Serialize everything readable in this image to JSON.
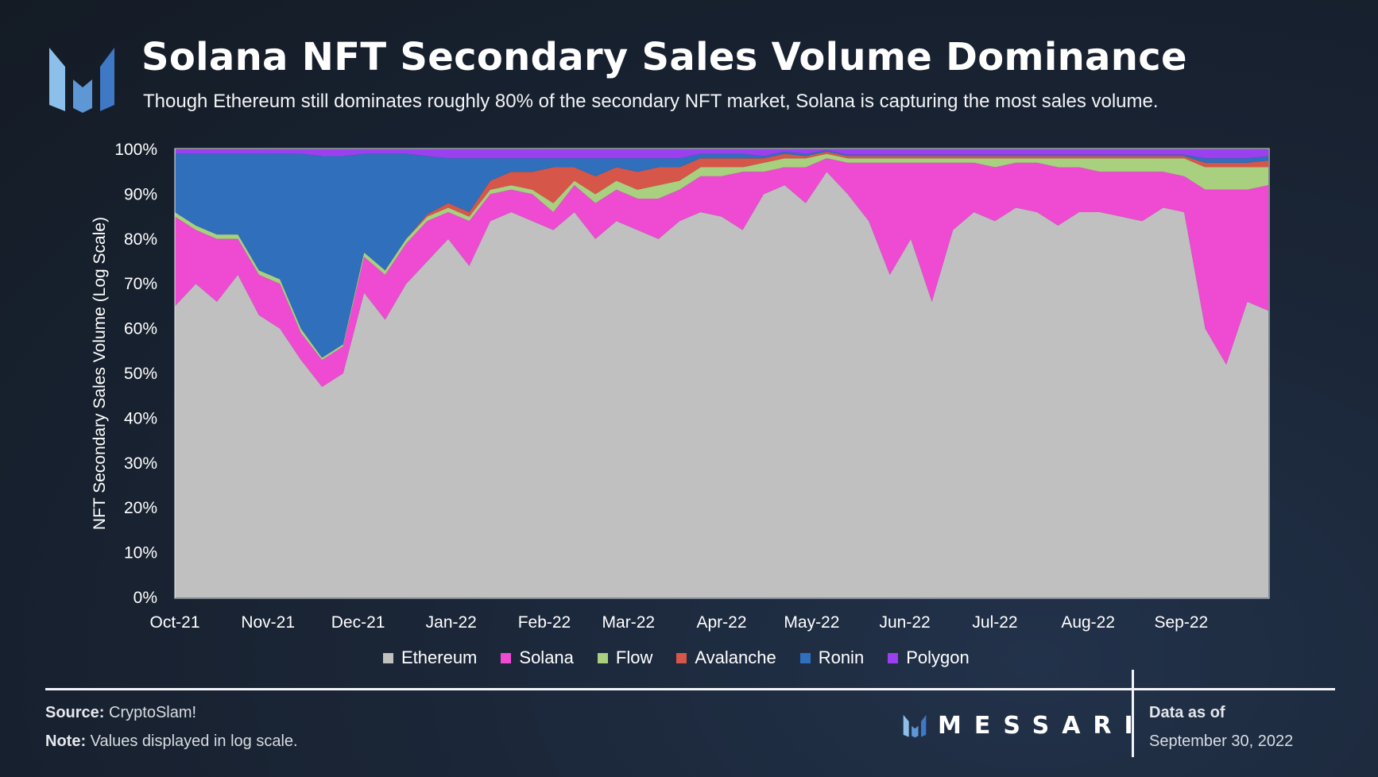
{
  "header": {
    "title": "Solana NFT Secondary Sales Volume Dominance",
    "subtitle": "Though Ethereum still dominates roughly 80% of the secondary NFT market, Solana is capturing the most sales volume."
  },
  "footer": {
    "source_label": "Source:",
    "source_value": "CryptoSlam!",
    "note_label": "Note:",
    "note_value": "Values displayed in log scale.",
    "brand": "MESSARI",
    "data_as_of_label": "Data as of",
    "data_as_of_date": "September 30, 2022"
  },
  "chart_data": {
    "type": "area",
    "stacked": true,
    "title": "Solana NFT Secondary Sales Volume Dominance",
    "xlabel": "",
    "ylabel": "NFT Secondary Sales Volume (Log Scale)",
    "ylim": [
      0,
      100
    ],
    "y_ticks": [
      "0%",
      "10%",
      "20%",
      "30%",
      "40%",
      "50%",
      "60%",
      "70%",
      "80%",
      "90%",
      "100%"
    ],
    "x_ticks": [
      "Oct-21",
      "Nov-21",
      "Dec-21",
      "Jan-22",
      "Feb-22",
      "Mar-22",
      "Apr-22",
      "May-22",
      "Jun-22",
      "Jul-22",
      "Aug-22",
      "Sep-22"
    ],
    "legend_position": "bottom",
    "colors": {
      "Ethereum": "#c0c0c0",
      "Solana": "#ee4bd2",
      "Flow": "#a9d07f",
      "Avalanche": "#d6574a",
      "Ronin": "#2f6fbb",
      "Polygon": "#9b40ee"
    },
    "x": [
      "2021-10-01",
      "2021-10-08",
      "2021-10-15",
      "2021-10-22",
      "2021-10-29",
      "2021-11-05",
      "2021-11-12",
      "2021-11-19",
      "2021-11-26",
      "2021-12-03",
      "2021-12-10",
      "2021-12-17",
      "2021-12-24",
      "2021-12-31",
      "2022-01-07",
      "2022-01-14",
      "2022-01-21",
      "2022-01-28",
      "2022-02-04",
      "2022-02-11",
      "2022-02-18",
      "2022-02-25",
      "2022-03-04",
      "2022-03-11",
      "2022-03-18",
      "2022-03-25",
      "2022-04-01",
      "2022-04-08",
      "2022-04-15",
      "2022-04-22",
      "2022-04-29",
      "2022-05-06",
      "2022-05-13",
      "2022-05-20",
      "2022-05-27",
      "2022-06-03",
      "2022-06-10",
      "2022-06-17",
      "2022-06-24",
      "2022-07-01",
      "2022-07-08",
      "2022-07-15",
      "2022-07-22",
      "2022-07-29",
      "2022-08-05",
      "2022-08-12",
      "2022-08-19",
      "2022-08-26",
      "2022-09-02",
      "2022-09-09",
      "2022-09-16",
      "2022-09-23",
      "2022-09-30"
    ],
    "series": [
      {
        "name": "Ethereum",
        "values": [
          65,
          70,
          66,
          72,
          63,
          60,
          53,
          47,
          50,
          68,
          62,
          70,
          75,
          80,
          74,
          84,
          86,
          84,
          82,
          86,
          80,
          84,
          82,
          80,
          84,
          86,
          85,
          82,
          90,
          92,
          88,
          95,
          90,
          84,
          72,
          80,
          66,
          82,
          86,
          84,
          87,
          86,
          83,
          86,
          86,
          85,
          84,
          87,
          86,
          60,
          52,
          66,
          64
        ]
      },
      {
        "name": "Solana",
        "values": [
          20,
          12,
          14,
          8,
          9,
          10,
          6,
          6,
          6,
          8,
          10,
          9,
          9,
          6,
          10,
          6,
          5,
          6,
          4,
          6,
          8,
          7,
          7,
          9,
          7,
          8,
          9,
          13,
          5,
          4,
          8,
          3,
          7,
          13,
          25,
          17,
          31,
          15,
          11,
          12,
          10,
          11,
          13,
          10,
          9,
          10,
          11,
          8,
          8,
          31,
          39,
          25,
          28
        ]
      },
      {
        "name": "Flow",
        "values": [
          1,
          1,
          1,
          1,
          1,
          1,
          1,
          0.5,
          0.5,
          1,
          1,
          1,
          1,
          1,
          1,
          1,
          1,
          1,
          2,
          1,
          2,
          2,
          2,
          3,
          2,
          2,
          2,
          1,
          2,
          2,
          2,
          1,
          1,
          1,
          1,
          1,
          1,
          1,
          1,
          2,
          1,
          1,
          2,
          2,
          3,
          3,
          3,
          3,
          4,
          5,
          5,
          5,
          4
        ]
      },
      {
        "name": "Avalanche",
        "values": [
          0,
          0,
          0,
          0,
          0,
          0,
          0,
          0,
          0,
          0,
          0,
          0,
          0.5,
          1,
          1,
          2,
          3,
          4,
          8,
          3,
          4,
          3,
          4,
          4,
          3,
          2,
          2,
          2,
          1,
          1,
          0.5,
          0.5,
          0.5,
          0.5,
          0.5,
          0.5,
          0.5,
          0.5,
          0.5,
          0.5,
          0.5,
          0.5,
          0.5,
          0.5,
          0.5,
          0.5,
          0.5,
          0.5,
          0.5,
          1,
          1,
          1,
          1.5
        ]
      },
      {
        "name": "Ronin",
        "values": [
          13,
          16,
          18,
          18,
          26,
          28,
          39,
          45,
          42,
          22,
          26,
          19,
          13,
          10,
          12,
          5,
          3,
          3,
          2,
          2,
          4,
          2,
          3,
          2,
          2,
          1,
          1,
          1,
          0.5,
          0.5,
          0.5,
          0.3,
          0.3,
          0.3,
          0.3,
          0.3,
          0.3,
          0.3,
          0.3,
          0.3,
          0.3,
          0.3,
          0.3,
          0.3,
          0.3,
          0.3,
          0.3,
          0.3,
          0.3,
          1,
          1,
          1,
          1
        ]
      },
      {
        "name": "Polygon",
        "values": [
          1,
          1,
          1,
          1,
          1,
          1,
          1,
          1.5,
          1.5,
          1,
          1,
          1,
          1.5,
          2,
          2,
          2,
          2,
          2,
          2,
          2,
          2,
          2,
          2,
          2,
          2,
          1,
          1,
          1,
          1.5,
          0.5,
          1,
          0.2,
          1.2,
          1.2,
          1.2,
          1.2,
          1.2,
          1.2,
          1.2,
          1.2,
          1.2,
          1.2,
          1.2,
          1.2,
          1.2,
          1.2,
          1.2,
          1.2,
          1.2,
          2,
          2,
          2,
          1.5
        ]
      }
    ]
  }
}
